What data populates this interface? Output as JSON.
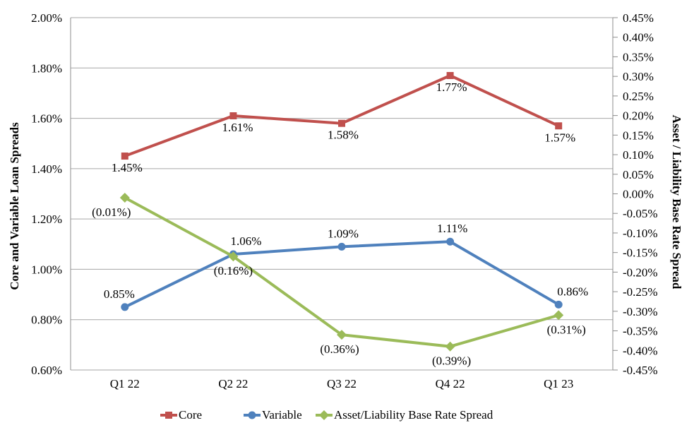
{
  "chart_data": {
    "type": "line",
    "title": "",
    "categories": [
      "Q1 22",
      "Q2 22",
      "Q3 22",
      "Q4 22",
      "Q1 23"
    ],
    "axes": {
      "left": {
        "title": "Core and Variable Loan Spreads",
        "min": 0.6,
        "max": 2.0,
        "step": 0.2,
        "tick_labels": [
          "2.00%",
          "1.80%",
          "1.60%",
          "1.40%",
          "1.20%",
          "1.00%",
          "0.80%",
          "0.60%"
        ]
      },
      "right": {
        "title": "Asset / Liability Base Rate Spread",
        "min": -0.45,
        "max": 0.45,
        "step": 0.05,
        "tick_labels": [
          "0.45%",
          "0.40%",
          "0.35%",
          "0.30%",
          "0.25%",
          "0.20%",
          "0.15%",
          "0.10%",
          "0.05%",
          "0.00%",
          "-0.05%",
          "-0.10%",
          "-0.15%",
          "-0.20%",
          "-0.25%",
          "-0.30%",
          "-0.35%",
          "-0.40%",
          "-0.45%"
        ]
      }
    },
    "series": [
      {
        "name": "Core",
        "axis": "left",
        "color": "#C0504D",
        "marker": "square",
        "values": [
          1.45,
          1.61,
          1.58,
          1.77,
          1.57
        ],
        "labels": [
          "1.45%",
          "1.61%",
          "1.58%",
          "1.77%",
          "1.57%"
        ],
        "label_position": "below",
        "label_dx": [
          3,
          6,
          2,
          2,
          2
        ]
      },
      {
        "name": "Variable",
        "axis": "left",
        "color": "#4F81BD",
        "marker": "circle",
        "values": [
          0.85,
          1.06,
          1.09,
          1.11,
          0.86
        ],
        "labels": [
          "0.85%",
          "1.06%",
          "1.09%",
          "1.11%",
          "0.86%"
        ],
        "label_position": "above",
        "label_dx": [
          -8,
          18,
          2,
          3,
          20
        ]
      },
      {
        "name": "Asset/Liability Base Rate Spread",
        "axis": "right",
        "color": "#9BBB59",
        "marker": "diamond",
        "values": [
          -0.01,
          -0.16,
          -0.36,
          -0.39,
          -0.31
        ],
        "labels": [
          "(0.01%)",
          "(0.16%)",
          "(0.36%)",
          "(0.39%)",
          "(0.31%)"
        ],
        "label_position": "below",
        "label_dx": [
          -19,
          0,
          -3,
          2,
          11
        ]
      }
    ],
    "legend_position": "bottom",
    "grid": true,
    "colors": {
      "gridline": "#A6A6A6",
      "axis_line": "#8C8C8C",
      "text": "#000000",
      "background": "#FFFFFF"
    }
  }
}
